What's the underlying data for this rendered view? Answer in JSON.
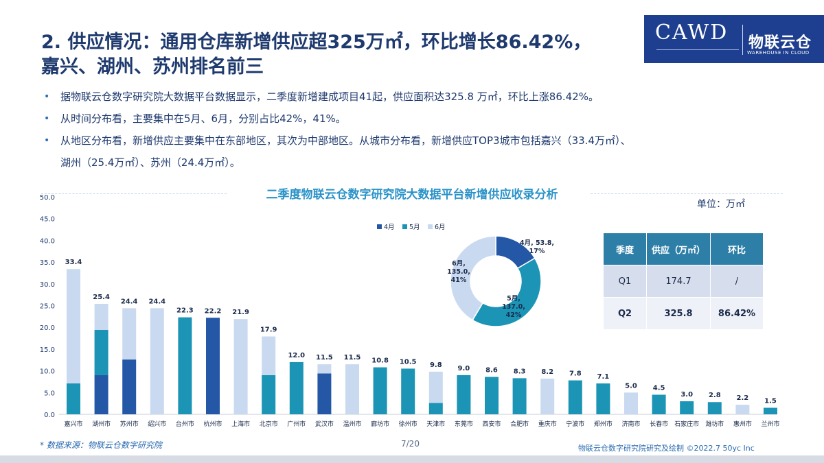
{
  "header": {
    "title_line1": "2. 供应情况：通用仓库新增供应超325万㎡，环比增长86.42%，",
    "title_line2": "嘉兴、湖州、苏州排名前三"
  },
  "logo": {
    "cawd": "CAWD",
    "cn": "物联云仓",
    "en": "WAREHOUSE IN CLOUD"
  },
  "bullets": [
    {
      "text": "据物联云仓数字研究院大数据平台数据显示，二季度新增建成项目41起，供应面积达325.8 万㎡，环比上涨86.42%。",
      "text2": ""
    },
    {
      "text": "从时间分布看，主要集中在5月、6月，分别占比42%，41%。",
      "text2": ""
    },
    {
      "text": "从地区分布看，新增供应主要集中在东部地区，其次为中部地区。从城市分布看，新增供应TOP3城市包括嘉兴（33.4万㎡）、",
      "text2": "湖州（25.4万㎡）、苏州（24.4万㎡）。"
    }
  ],
  "chart_title": "二季度物联云仓数字研究院大数据平台新增供应收录分析",
  "unit": "单位：万㎡",
  "chart_data": [
    {
      "type": "bar",
      "stacked": true,
      "categories": [
        "嘉兴市",
        "湖州市",
        "苏州市",
        "绍兴市",
        "台州市",
        "杭州市",
        "上海市",
        "北京市",
        "广州市",
        "武汉市",
        "温州市",
        "廊坊市",
        "徐州市",
        "天津市",
        "东莞市",
        "西安市",
        "合肥市",
        "重庆市",
        "宁波市",
        "郑州市",
        "济南市",
        "长春市",
        "石家庄市",
        "潍坊市",
        "惠州市",
        "兰州市"
      ],
      "totals": [
        33.4,
        25.4,
        24.4,
        24.4,
        22.3,
        22.2,
        21.9,
        17.9,
        12.0,
        11.5,
        11.5,
        10.8,
        10.5,
        9.8,
        9.0,
        8.6,
        8.3,
        8.2,
        7.8,
        7.1,
        5.0,
        4.5,
        3.0,
        2.8,
        2.2,
        1.5
      ],
      "total_labels": [
        "33.4",
        "25.4",
        "24.4",
        "24.4",
        "22.3",
        "22.2",
        "21.9",
        "17.9",
        "12.0",
        "11.5",
        "11.5",
        "10.8",
        "10.5",
        "9.8",
        "9.0",
        "8.6",
        "8.3",
        "8.2",
        "7.8",
        "7.1",
        "5.0",
        "4.5",
        "3.0",
        "2.8",
        "2.2",
        "1.5"
      ],
      "series": [
        {
          "name": "4月",
          "color": "#2557a7",
          "values": [
            0,
            9,
            12.6,
            0,
            0,
            22.2,
            0,
            0,
            0,
            9.4,
            0,
            0,
            0,
            0,
            0,
            0,
            0,
            0,
            0,
            0,
            0,
            0,
            0,
            0,
            0,
            0
          ]
        },
        {
          "name": "5月",
          "color": "#1b94b5",
          "values": [
            7.1,
            10.4,
            0,
            0,
            22.3,
            0,
            0,
            9,
            12.0,
            0,
            0,
            10.8,
            10.5,
            2.6,
            9.0,
            8.6,
            8.3,
            0,
            7.8,
            7.1,
            0,
            4.5,
            3.0,
            2.8,
            0,
            1.5
          ]
        },
        {
          "name": "6月",
          "color": "#c9daf0",
          "values": [
            26.3,
            6.0,
            11.8,
            24.4,
            0,
            0,
            21.9,
            8.9,
            0,
            2.1,
            11.5,
            0,
            0,
            7.2,
            0,
            0,
            0,
            8.2,
            0,
            0,
            5.0,
            0,
            0,
            0,
            2.2,
            0
          ]
        }
      ],
      "yticks": [
        "0.0",
        "5.0",
        "10.0",
        "15.0",
        "20.0",
        "25.0",
        "30.0",
        "35.0",
        "40.0",
        "45.0",
        "50.0"
      ],
      "ylim": [
        0,
        50
      ]
    },
    {
      "type": "pie",
      "donut": true,
      "legend": [
        "4月",
        "5月",
        "6月"
      ],
      "slices": [
        {
          "name": "4月",
          "value": 53.8,
          "percent": "17%",
          "color": "#2557a7",
          "l1": "4月, 53.8,",
          "l2": "17%"
        },
        {
          "name": "5月",
          "value": 137.0,
          "percent": "42%",
          "color": "#1b94b5",
          "l1": "5月,",
          "l2": "137.0,",
          "l3": "42%"
        },
        {
          "name": "6月",
          "value": 135.0,
          "percent": "41%",
          "color": "#c9daf0",
          "l1": "6月,",
          "l2": "135.0,",
          "l3": "41%"
        }
      ]
    },
    {
      "type": "table",
      "columns": [
        "季度",
        "供应（万㎡）",
        "环比"
      ],
      "rows": [
        [
          "Q1",
          "174.7",
          "/"
        ],
        [
          "Q2",
          "325.8",
          "86.42%"
        ]
      ]
    }
  ],
  "footer": {
    "source": "* 数据来源：物联云仓数字研究院",
    "page": "7/20",
    "copyright": "物联云仓数字研究院研究及绘制   ©2022.7  50yc Inc"
  }
}
